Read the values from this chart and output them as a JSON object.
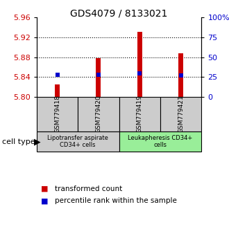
{
  "title": "GDS4079 / 8133021",
  "samples": [
    "GSM779418",
    "GSM779420",
    "GSM779419",
    "GSM779421"
  ],
  "red_values": [
    5.825,
    5.878,
    5.93,
    5.887
  ],
  "blue_values": [
    5.845,
    5.845,
    5.847,
    5.844
  ],
  "y_min": 5.8,
  "y_max": 5.96,
  "y_ticks_left": [
    5.8,
    5.84,
    5.88,
    5.92,
    5.96
  ],
  "y_ticks_right": [
    0,
    25,
    50,
    75,
    100
  ],
  "bar_color": "#cc0000",
  "dot_color": "#0000cc",
  "group1_label": "Lipotransfer aspirate\nCD34+ cells",
  "group2_label": "Leukapheresis CD34+\ncells",
  "group1_color": "#cccccc",
  "group2_color": "#99ee99",
  "cell_type_label": "cell type",
  "legend1": "transformed count",
  "legend2": "percentile rank within the sample",
  "bar_width": 0.12,
  "x_positions": [
    1,
    2,
    3,
    4
  ],
  "x_lim": [
    0.5,
    4.5
  ],
  "title_fontsize": 10,
  "tick_fontsize": 8,
  "sample_fontsize": 6.5,
  "group_fontsize": 6,
  "legend_fontsize": 7.5
}
